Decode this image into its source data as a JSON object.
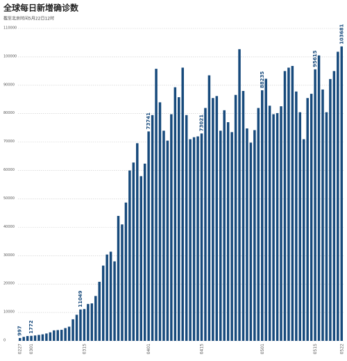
{
  "chart_data": {
    "type": "bar",
    "title": "全球每日新增确诊数",
    "subtitle": "截至北京时间5月22日12时",
    "color": "#174a7c",
    "grid": true,
    "ylim": [
      0,
      110000
    ],
    "yticks": [
      0,
      10000,
      20000,
      30000,
      40000,
      50000,
      60000,
      70000,
      80000,
      90000,
      100000,
      110000
    ],
    "categories": [
      "0227",
      null,
      null,
      "0301",
      null,
      null,
      null,
      null,
      null,
      null,
      null,
      null,
      null,
      null,
      null,
      null,
      null,
      "0315",
      null,
      null,
      null,
      null,
      null,
      null,
      null,
      null,
      null,
      null,
      null,
      null,
      null,
      null,
      null,
      null,
      "0401",
      null,
      null,
      null,
      null,
      null,
      null,
      null,
      null,
      null,
      null,
      null,
      null,
      null,
      "0415",
      null,
      null,
      null,
      null,
      null,
      null,
      null,
      null,
      null,
      null,
      null,
      null,
      null,
      null,
      null,
      "0501",
      null,
      null,
      null,
      null,
      null,
      null,
      null,
      null,
      null,
      null,
      null,
      null,
      null,
      "0515",
      null,
      null,
      null,
      null,
      null,
      null,
      "0522"
    ],
    "values": [
      997,
      1400,
      1700,
      1772,
      1900,
      2100,
      2300,
      2600,
      3000,
      3700,
      3800,
      3900,
      4500,
      5000,
      7600,
      9200,
      11049,
      11200,
      13000,
      13200,
      15800,
      20800,
      26500,
      30400,
      31400,
      28000,
      44000,
      41000,
      48700,
      60000,
      62800,
      69600,
      58000,
      62400,
      73741,
      79500,
      95800,
      84000,
      74000,
      70500,
      79800,
      89300,
      85800,
      96200,
      79500,
      71000,
      71700,
      72000,
      73021,
      82000,
      93500,
      85500,
      86200,
      74000,
      81200,
      77000,
      73500,
      86600,
      102700,
      88000,
      74800,
      69800,
      74200,
      82000,
      88235,
      92300,
      82800,
      79800,
      80200,
      82600,
      95000,
      96200,
      96800,
      87800,
      80500,
      71000,
      85500,
      87000,
      95615,
      100500,
      88500,
      80500,
      92200,
      95000,
      101800,
      103681
    ],
    "value_labels": [
      "997",
      null,
      null,
      "1772",
      null,
      null,
      null,
      null,
      null,
      null,
      null,
      null,
      null,
      null,
      null,
      null,
      "11049",
      null,
      null,
      null,
      null,
      null,
      null,
      null,
      null,
      null,
      null,
      null,
      null,
      null,
      null,
      null,
      null,
      null,
      "73741",
      null,
      null,
      null,
      null,
      null,
      null,
      null,
      null,
      null,
      null,
      null,
      null,
      null,
      "73021",
      null,
      null,
      null,
      null,
      null,
      null,
      null,
      null,
      null,
      null,
      null,
      null,
      null,
      null,
      null,
      "88235",
      null,
      null,
      null,
      null,
      null,
      null,
      null,
      null,
      null,
      null,
      null,
      null,
      null,
      "95615",
      null,
      null,
      null,
      null,
      null,
      null,
      "103681"
    ]
  }
}
